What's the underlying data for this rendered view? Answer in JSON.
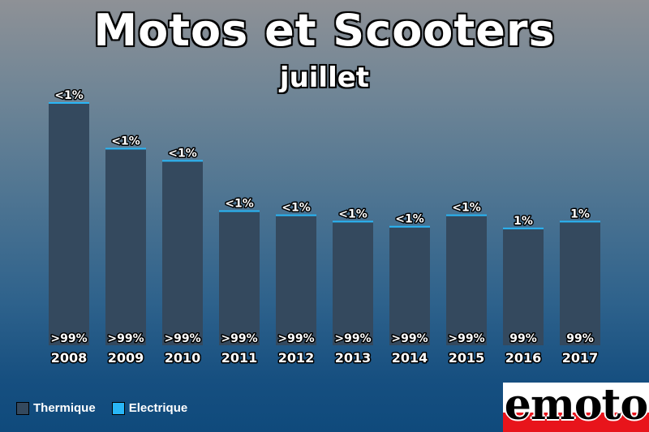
{
  "chart_data": {
    "type": "bar",
    "title": "Motos et Scooters",
    "subtitle": "juillet",
    "categories": [
      "2008",
      "2009",
      "2010",
      "2011",
      "2012",
      "2013",
      "2014",
      "2015",
      "2016",
      "2017"
    ],
    "series": [
      {
        "name": "Thermique",
        "values": [
          99.6,
          99.6,
          99.6,
          99.6,
          99.6,
          99.6,
          99.6,
          99.6,
          99,
          99
        ],
        "labels": [
          ">99%",
          ">99%",
          ">99%",
          ">99%",
          ">99%",
          ">99%",
          ">99%",
          ">99%",
          "99%",
          "99%"
        ],
        "color": "#34495e"
      },
      {
        "name": "Electrique",
        "values": [
          0.4,
          0.4,
          0.4,
          0.4,
          0.4,
          0.4,
          0.4,
          0.4,
          1,
          1
        ],
        "labels": [
          "<1%",
          "<1%",
          "<1%",
          "<1%",
          "<1%",
          "<1%",
          "<1%",
          "<1%",
          "1%",
          "1%"
        ],
        "color": "#29b6f6"
      }
    ],
    "totals_relative": [
      1.0,
      0.812,
      0.762,
      0.555,
      0.538,
      0.512,
      0.491,
      0.538,
      0.484,
      0.512
    ],
    "legend_position": "bottom-left",
    "grid": false
  },
  "logo": {
    "text": "emoto"
  }
}
